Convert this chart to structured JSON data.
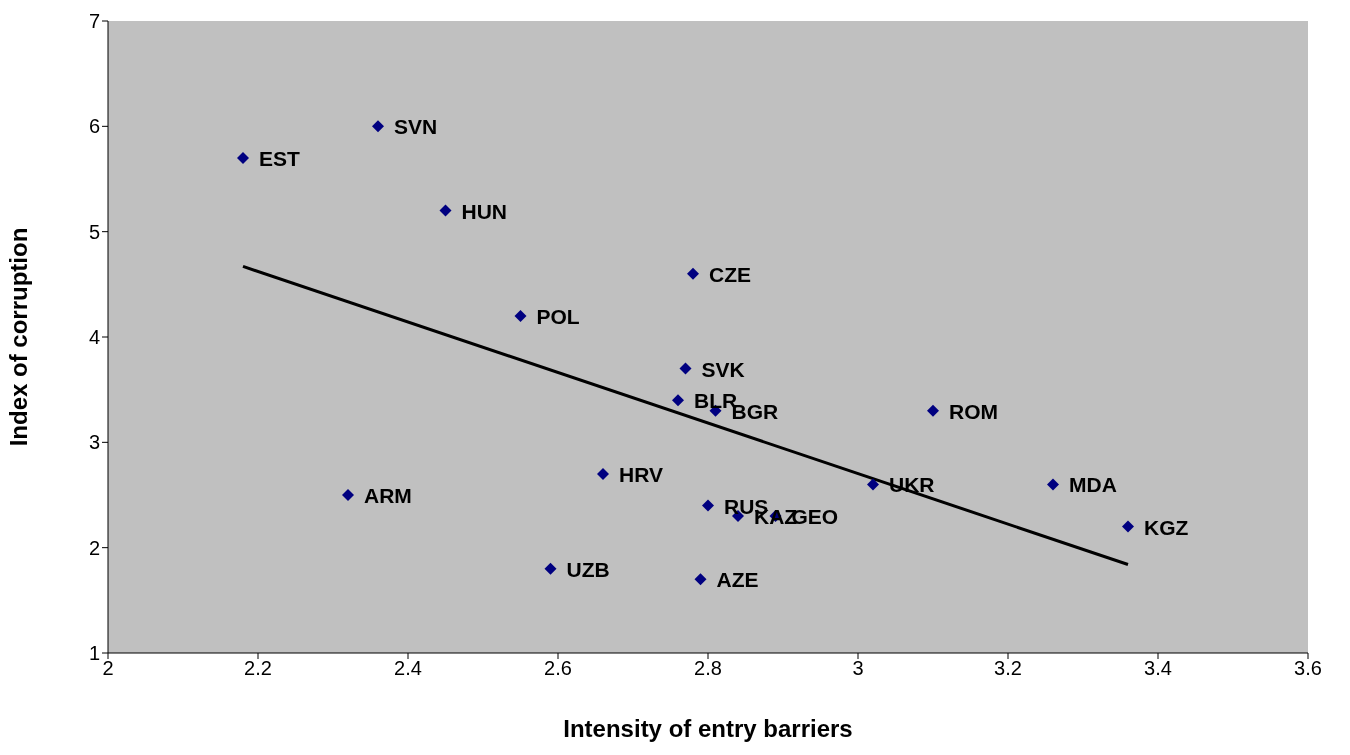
{
  "chart_data": {
    "type": "scatter",
    "xlabel": "Intensity of entry barriers",
    "ylabel": "Index of corruption",
    "xlim": [
      2,
      3.6
    ],
    "xticks": [
      2,
      2.2,
      2.4,
      2.6,
      2.8,
      3,
      3.2,
      3.4,
      3.6
    ],
    "ylim": [
      1,
      7
    ],
    "yticks": [
      1,
      2,
      3,
      4,
      5,
      6,
      7
    ],
    "grid": false,
    "marker": "diamond",
    "series": [
      {
        "color": "#000080",
        "x": [
          2.18,
          2.36,
          2.45,
          2.78,
          2.55,
          2.77,
          2.76,
          2.81,
          3.1,
          3.02,
          3.26,
          3.36,
          2.66,
          2.32,
          2.8,
          2.84,
          2.89,
          2.59,
          2.79
        ],
        "values": [
          5.7,
          6.0,
          5.2,
          4.6,
          4.2,
          3.7,
          3.4,
          3.3,
          3.3,
          2.6,
          2.6,
          2.2,
          2.7,
          2.5,
          2.4,
          2.3,
          2.3,
          1.8,
          1.7
        ],
        "value_labels": [
          "EST",
          "SVN",
          "HUN",
          "CZE",
          "POL",
          "SVK",
          "BLR",
          "BGR",
          "ROM",
          "UKR",
          "MDA",
          "KGZ",
          "HRV",
          "ARM",
          "RUS",
          "KAZ",
          "GEO",
          "UZB",
          "AZE"
        ]
      },
      {
        "type": "line",
        "color": "#000000",
        "marker": "none",
        "line_style": "solid",
        "x": [
          2.18,
          3.36
        ],
        "values": [
          4.67,
          1.84
        ]
      }
    ]
  }
}
